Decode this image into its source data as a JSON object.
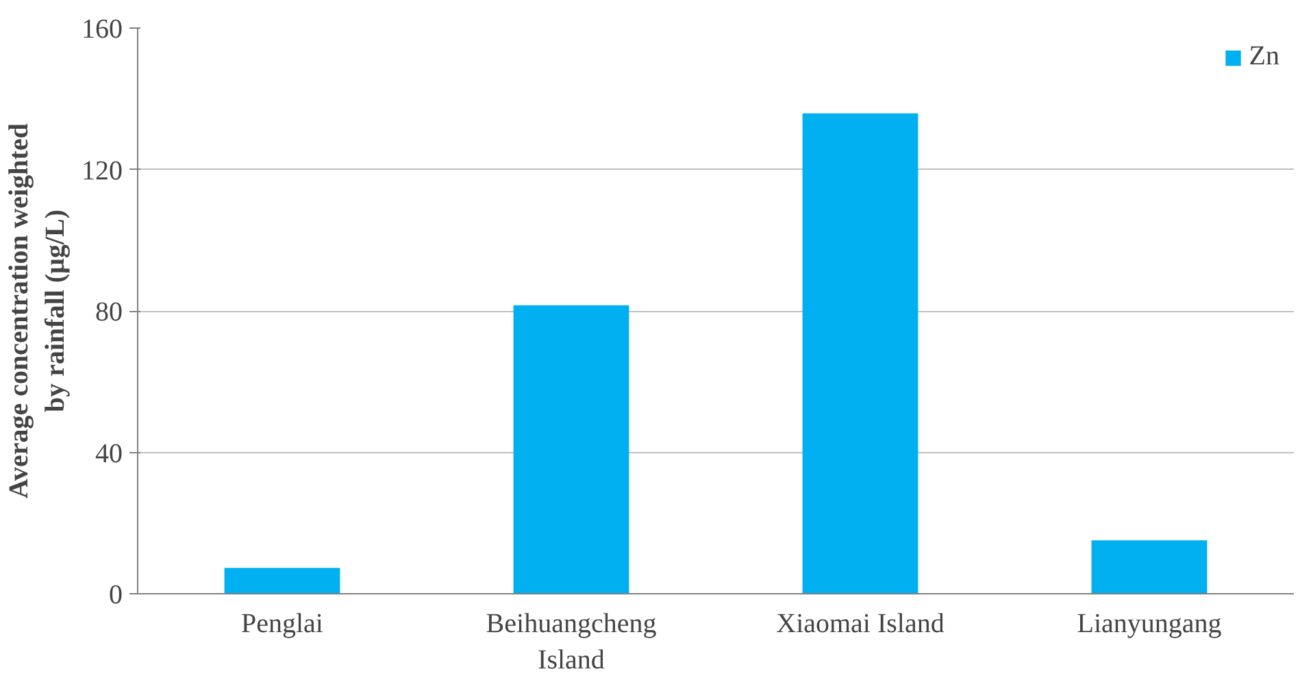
{
  "chart_data": {
    "type": "bar",
    "ylabel": "Average concentration weighted by rainfall (μg/L)",
    "categories": [
      "Penglai",
      "Beihuangcheng Island",
      "Xiaomai Island",
      "Lianyungang"
    ],
    "series": [
      {
        "name": "Zn",
        "color": "#00b0f0",
        "values": [
          7.3,
          81.6,
          135.9,
          15.1
        ]
      }
    ],
    "ylim": [
      0,
      160
    ],
    "yticks": [
      0,
      40,
      80,
      120,
      160
    ],
    "grid": "y",
    "legend": "top right"
  }
}
